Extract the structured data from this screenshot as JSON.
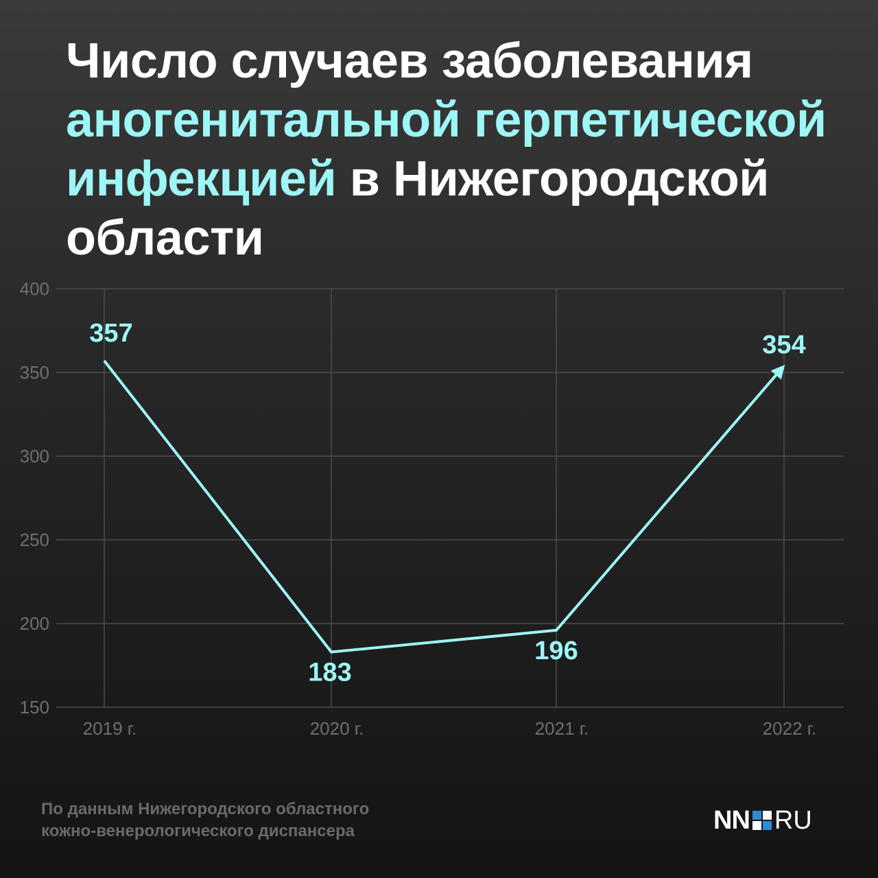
{
  "title": {
    "part1": "Число случаев заболевания",
    "highlight": "аногенитальной герпетической инфекцией",
    "part2": "в Нижегородской области"
  },
  "colors": {
    "accent": "#9ef6f6",
    "grid": "#4d4d4d",
    "axis_text": "#6f6f6f",
    "source_text": "#6a6a6a"
  },
  "chart_data": {
    "type": "line",
    "categories": [
      "2019 г.",
      "2020 г.",
      "2021 г.",
      "2022 г."
    ],
    "series": [
      {
        "values": [
          357,
          183,
          196,
          354
        ]
      }
    ],
    "data_labels": [
      "357",
      "183",
      "196",
      "354"
    ],
    "yticks": [
      400,
      350,
      300,
      250,
      200,
      150
    ],
    "ylim": [
      150,
      400
    ],
    "grid": true,
    "end_marker": "arrow"
  },
  "footer": {
    "source_line1": "По данным Нижегородского областного",
    "source_line2": "кожно-венерологического диспансера",
    "logo_left": "NN",
    "logo_right": "RU"
  }
}
